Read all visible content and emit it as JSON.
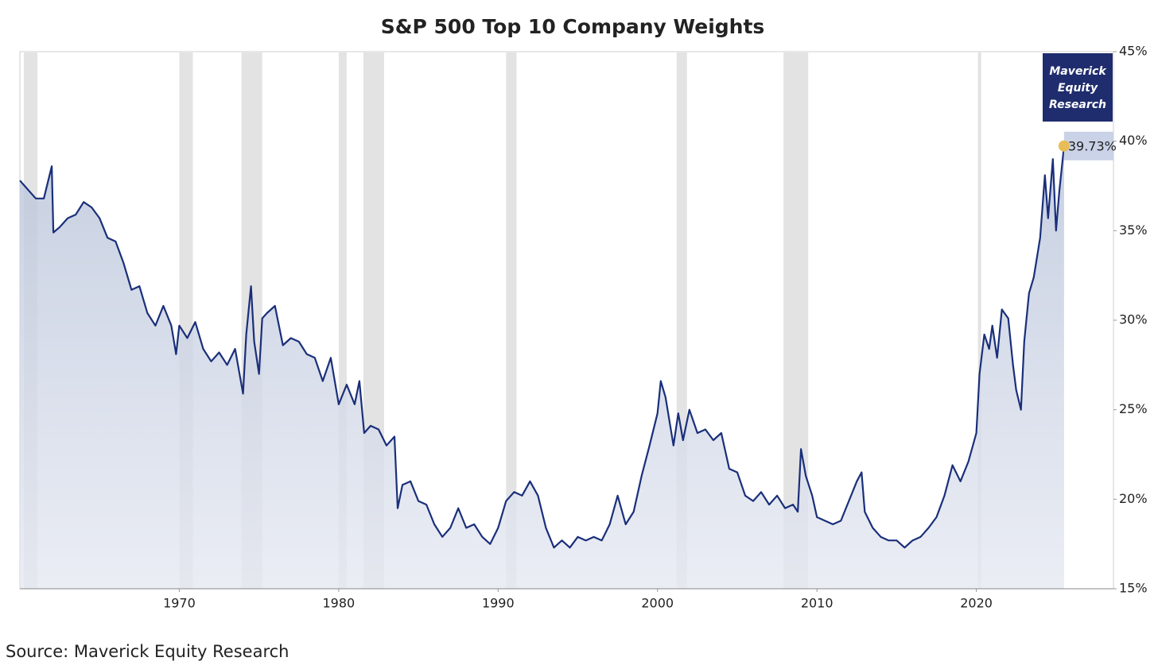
{
  "chart_data": {
    "type": "line",
    "title": "S&P 500 Top 10 Company Weights",
    "source": "Source: Maverick Equity Research",
    "logo_lines": [
      "Maverick",
      "Equity",
      "Research"
    ],
    "x": [
      1960.0,
      1960.3,
      1960.6,
      1961.0,
      1961.5,
      1962.0,
      1962.1,
      1962.5,
      1963.0,
      1963.5,
      1964.0,
      1964.5,
      1965.0,
      1965.5,
      1966.0,
      1966.5,
      1967.0,
      1967.5,
      1968.0,
      1968.5,
      1969.0,
      1969.5,
      1969.8,
      1970.0,
      1970.5,
      1971.0,
      1971.5,
      1972.0,
      1972.5,
      1973.0,
      1973.5,
      1974.0,
      1974.2,
      1974.5,
      1974.7,
      1975.0,
      1975.2,
      1975.5,
      1976.0,
      1976.5,
      1977.0,
      1977.5,
      1978.0,
      1978.5,
      1979.0,
      1979.5,
      1980.0,
      1980.5,
      1981.0,
      1981.3,
      1981.6,
      1982.0,
      1982.5,
      1983.0,
      1983.5,
      1983.7,
      1984.0,
      1984.5,
      1985.0,
      1985.5,
      1986.0,
      1986.5,
      1987.0,
      1987.5,
      1988.0,
      1988.5,
      1989.0,
      1989.5,
      1990.0,
      1990.5,
      1991.0,
      1991.5,
      1992.0,
      1992.5,
      1993.0,
      1993.5,
      1994.0,
      1994.5,
      1995.0,
      1995.5,
      1996.0,
      1996.5,
      1997.0,
      1997.5,
      1998.0,
      1998.5,
      1999.0,
      1999.5,
      2000.0,
      2000.2,
      2000.5,
      2001.0,
      2001.3,
      2001.6,
      2002.0,
      2002.5,
      2003.0,
      2003.5,
      2004.0,
      2004.5,
      2005.0,
      2005.5,
      2006.0,
      2006.5,
      2007.0,
      2007.5,
      2008.0,
      2008.5,
      2008.8,
      2009.0,
      2009.3,
      2009.7,
      2010.0,
      2010.5,
      2011.0,
      2011.5,
      2012.0,
      2012.5,
      2012.8,
      2013.0,
      2013.5,
      2014.0,
      2014.5,
      2015.0,
      2015.5,
      2016.0,
      2016.5,
      2017.0,
      2017.5,
      2018.0,
      2018.5,
      2019.0,
      2019.5,
      2020.0,
      2020.2,
      2020.5,
      2020.8,
      2021.0,
      2021.3,
      2021.6,
      2022.0,
      2022.3,
      2022.5,
      2022.8,
      2023.0,
      2023.3,
      2023.6,
      2024.0,
      2024.3,
      2024.5,
      2024.8,
      2025.0,
      2025.2,
      2025.5
    ],
    "series": [
      {
        "color": "#1a2f7a",
        "values": [
          37.8,
          37.5,
          37.2,
          36.8,
          36.8,
          38.6,
          34.9,
          35.2,
          35.7,
          35.9,
          36.6,
          36.3,
          35.7,
          34.6,
          34.4,
          33.2,
          31.7,
          31.9,
          30.4,
          29.7,
          30.8,
          29.7,
          28.1,
          29.7,
          29.0,
          29.9,
          28.4,
          27.7,
          28.2,
          27.5,
          28.4,
          25.9,
          29.2,
          31.9,
          28.8,
          27.0,
          30.1,
          30.4,
          30.8,
          28.6,
          29.0,
          28.8,
          28.1,
          27.9,
          26.6,
          27.9,
          25.3,
          26.4,
          25.3,
          26.6,
          23.7,
          24.1,
          23.9,
          23.0,
          23.5,
          19.5,
          20.8,
          21.0,
          19.9,
          19.7,
          18.6,
          17.9,
          18.4,
          19.5,
          18.4,
          18.6,
          17.9,
          17.5,
          18.4,
          19.9,
          20.4,
          20.2,
          21.0,
          20.2,
          18.4,
          17.3,
          17.7,
          17.3,
          17.9,
          17.7,
          17.9,
          17.7,
          18.6,
          20.2,
          18.6,
          19.3,
          21.3,
          23.0,
          24.8,
          26.6,
          25.7,
          23.0,
          24.8,
          23.3,
          25.0,
          23.7,
          23.9,
          23.3,
          23.7,
          21.7,
          21.5,
          20.2,
          19.9,
          20.4,
          19.7,
          20.2,
          19.5,
          19.7,
          19.3,
          22.8,
          21.3,
          20.2,
          19.0,
          18.8,
          18.6,
          18.8,
          19.9,
          21.0,
          21.5,
          19.3,
          18.4,
          17.9,
          17.7,
          17.7,
          17.3,
          17.7,
          17.9,
          18.4,
          19.0,
          20.2,
          21.9,
          21.0,
          22.1,
          23.7,
          27.0,
          29.2,
          28.4,
          29.7,
          27.9,
          30.6,
          30.1,
          27.5,
          26.1,
          25.0,
          28.8,
          31.5,
          32.4,
          34.6,
          38.1,
          35.7,
          39.0,
          35.0,
          37.2,
          39.73
        ]
      }
    ],
    "end_label": {
      "value": 39.73,
      "label": "39.73%"
    },
    "recessions": [
      [
        1960.25,
        1961.1
      ],
      [
        1970.0,
        1970.85
      ],
      [
        1973.9,
        1975.2
      ],
      [
        1980.0,
        1980.5
      ],
      [
        1981.55,
        1982.85
      ],
      [
        1990.5,
        1991.15
      ],
      [
        2001.2,
        2001.85
      ],
      [
        2007.9,
        2009.45
      ],
      [
        2020.1,
        2020.3
      ]
    ],
    "recession_color": "#e3e3e3",
    "xlim": [
      1960,
      2028.6
    ],
    "xticks": [
      1970,
      1980,
      1990,
      2000,
      2010,
      2020
    ],
    "ylim": [
      15,
      45
    ],
    "yticks": [
      {
        "value": 15,
        "label": "15%"
      },
      {
        "value": 20,
        "label": "20%"
      },
      {
        "value": 25,
        "label": "25%"
      },
      {
        "value": 30,
        "label": "30%"
      },
      {
        "value": 35,
        "label": "35%"
      },
      {
        "value": 40,
        "label": "40%"
      },
      {
        "value": 45,
        "label": "45%"
      }
    ]
  }
}
